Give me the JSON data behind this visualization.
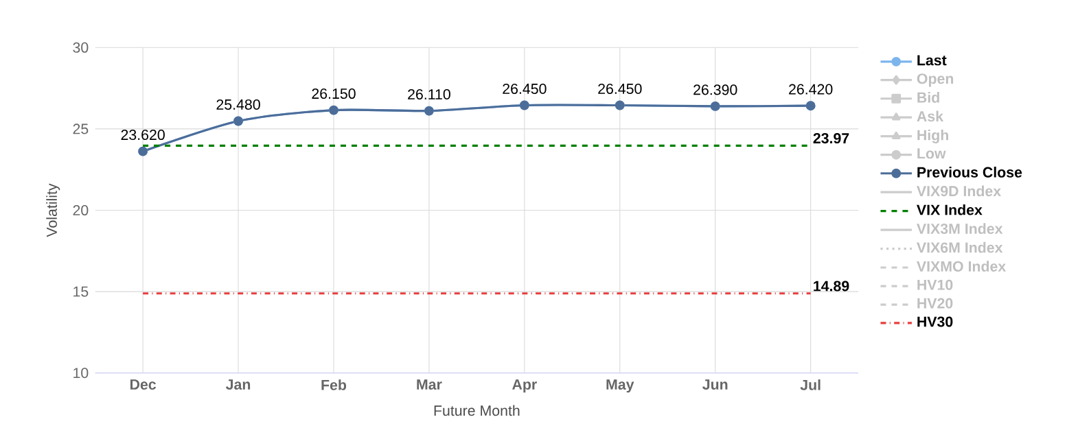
{
  "chart_data": {
    "type": "line",
    "xlabel": "Future Month",
    "ylabel": "Volatility",
    "categories": [
      "Dec",
      "Jan",
      "Feb",
      "Mar",
      "Apr",
      "May",
      "Jun",
      "Jul"
    ],
    "ylim": [
      10,
      30
    ],
    "yticks": [
      10,
      15,
      20,
      25,
      30
    ],
    "grid": true,
    "legend": "right",
    "series": [
      {
        "name": "Last",
        "color": "#7cb5ec",
        "marker": "circle",
        "line_style": "solid",
        "values": [
          23.62,
          25.48,
          26.15,
          26.11,
          26.45,
          26.45,
          26.39,
          26.42
        ],
        "value_labels": [
          "23.620",
          "25.480",
          "26.150",
          "26.110",
          "26.450",
          "26.450",
          "26.390",
          "26.420"
        ]
      },
      {
        "name": "Open",
        "color": "#cccccc",
        "marker": "diamond",
        "values": [
          null,
          null,
          null,
          null,
          null,
          null,
          null,
          null
        ]
      },
      {
        "name": "Bid",
        "color": "#cccccc",
        "marker": "square",
        "values": [
          null,
          null,
          null,
          null,
          null,
          null,
          null,
          null
        ]
      },
      {
        "name": "Ask",
        "color": "#cccccc",
        "marker": "triangle",
        "values": [
          null,
          null,
          null,
          null,
          null,
          null,
          null,
          null
        ]
      },
      {
        "name": "High",
        "color": "#cccccc",
        "marker": "triangle",
        "values": [
          null,
          null,
          null,
          null,
          null,
          null,
          null,
          null
        ]
      },
      {
        "name": "Low",
        "color": "#cccccc",
        "marker": "circle",
        "values": [
          null,
          null,
          null,
          null,
          null,
          null,
          null,
          null
        ]
      },
      {
        "name": "Previous Close",
        "color": "#4d6d99",
        "marker": "circle",
        "line_style": "solid",
        "values": [
          23.62,
          25.48,
          26.15,
          26.11,
          26.45,
          26.45,
          26.39,
          26.42
        ]
      },
      {
        "name": "VIX9D Index",
        "color": "#cccccc",
        "marker": "none",
        "line_style": "solid",
        "values": [
          null,
          null,
          null,
          null,
          null,
          null,
          null,
          null
        ]
      },
      {
        "name": "VIX Index",
        "color": "#008000",
        "marker": "none",
        "line_style": "dashed",
        "values": [
          23.97,
          23.97,
          23.97,
          23.97,
          23.97,
          23.97,
          23.97,
          23.97
        ],
        "value_labels": [
          null,
          null,
          null,
          null,
          null,
          null,
          null,
          "23.97"
        ]
      },
      {
        "name": "VIX3M Index",
        "color": "#cccccc",
        "marker": "none",
        "line_style": "solid",
        "values": [
          null,
          null,
          null,
          null,
          null,
          null,
          null,
          null
        ]
      },
      {
        "name": "VIX6M Index",
        "color": "#cccccc",
        "marker": "none",
        "line_style": "dotted",
        "values": [
          null,
          null,
          null,
          null,
          null,
          null,
          null,
          null
        ]
      },
      {
        "name": "VIXMO Index",
        "color": "#cccccc",
        "marker": "none",
        "line_style": "dashed",
        "values": [
          null,
          null,
          null,
          null,
          null,
          null,
          null,
          null
        ]
      },
      {
        "name": "HV10",
        "color": "#cccccc",
        "marker": "none",
        "line_style": "dashed",
        "values": [
          null,
          null,
          null,
          null,
          null,
          null,
          null,
          null
        ]
      },
      {
        "name": "HV20",
        "color": "#cccccc",
        "marker": "none",
        "line_style": "dashed",
        "values": [
          null,
          null,
          null,
          null,
          null,
          null,
          null,
          null
        ]
      },
      {
        "name": "HV30",
        "color": "#e83e3e",
        "marker": "none",
        "line_style": "dashdot",
        "values": [
          14.89,
          14.89,
          14.89,
          14.89,
          14.89,
          14.89,
          14.89,
          14.89
        ],
        "value_labels": [
          null,
          null,
          null,
          null,
          null,
          null,
          null,
          "14.89"
        ]
      }
    ]
  }
}
